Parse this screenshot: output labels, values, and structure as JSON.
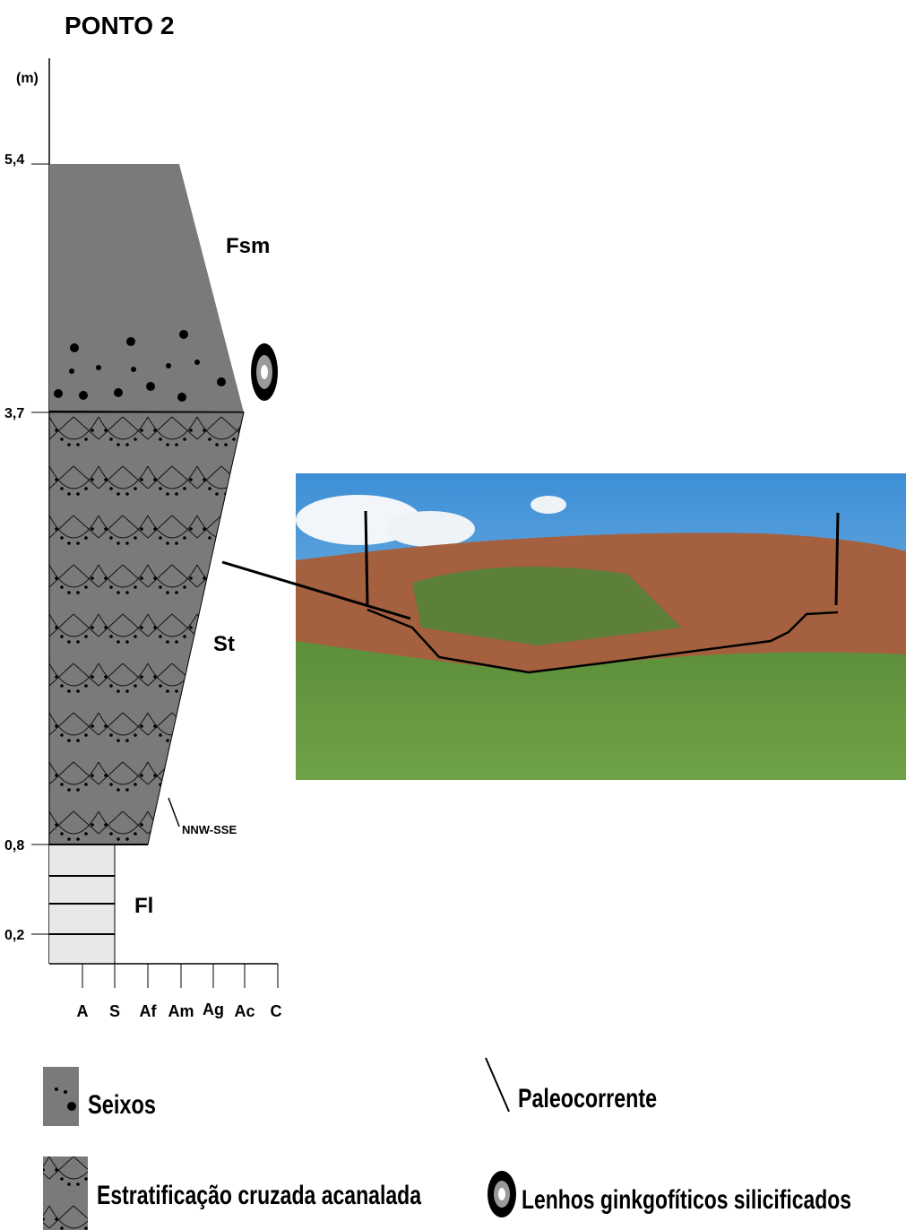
{
  "header": {
    "title": "PONTO 2",
    "unit": "(m)"
  },
  "depth_ticks": [
    "5,4",
    "3,7",
    "0,8",
    "0,2"
  ],
  "facies": [
    "Fsm",
    "St",
    "Fl"
  ],
  "paleocurrent": "NNW-SSE",
  "grain_size": [
    "A",
    "S",
    "Af",
    "Am",
    "Ag",
    "Ac",
    "C"
  ],
  "legend": [
    "Seixos",
    "Estratificação cruzada acanalada",
    "Paleocorrente",
    "Lenhos ginkgofíticos silicificados"
  ]
}
